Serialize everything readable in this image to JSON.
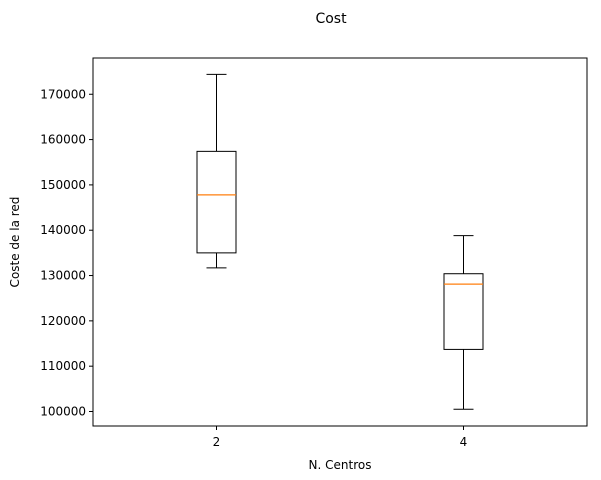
{
  "chart_data": {
    "type": "boxplot",
    "title": "Cost",
    "xlabel": "N. Centros",
    "ylabel": "Coste de la red",
    "categories": [
      "2",
      "4"
    ],
    "ylim": [
      96800,
      178000
    ],
    "yticks": [
      100000,
      110000,
      120000,
      130000,
      140000,
      150000,
      160000,
      170000
    ],
    "ytick_labels": [
      "100000",
      "110000",
      "120000",
      "130000",
      "140000",
      "150000",
      "160000",
      "170000"
    ],
    "boxes": [
      {
        "label": "2",
        "whisker_low": 131700,
        "q1": 135000,
        "median": 147800,
        "q3": 157400,
        "whisker_high": 174400
      },
      {
        "label": "4",
        "whisker_low": 100500,
        "q1": 113700,
        "median": 128100,
        "q3": 130400,
        "whisker_high": 138800
      }
    ],
    "grid": false,
    "colors": {
      "box": "#000000",
      "median": "#ff7f0e"
    }
  }
}
